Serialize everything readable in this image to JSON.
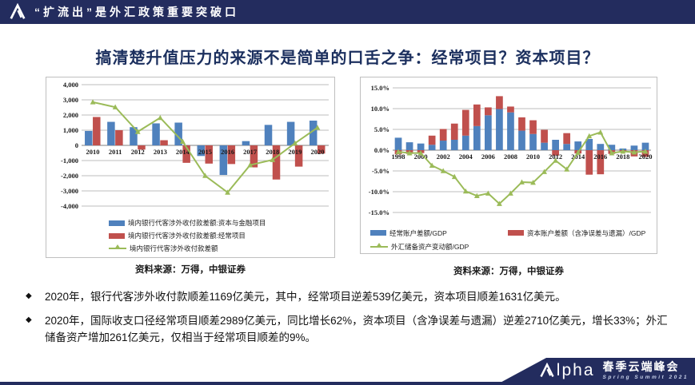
{
  "header": {
    "title": "“扩流出”是外汇政策重要突破口"
  },
  "page_title": "搞清楚升值压力的来源不是简单的口舌之争：经常项目？资本项目？",
  "colors": {
    "navy": "#232c5e",
    "title_navy": "#1b2f5e",
    "bar_blue": "#4F81BD",
    "bar_red": "#C0504D",
    "line_green": "#9BBB59"
  },
  "chart_data": [
    {
      "type": "bar",
      "subtype": "grouped-bars-with-line",
      "bar_mode": "group",
      "categories": [
        "2010",
        "2011",
        "2012",
        "2013",
        "2014",
        "2015",
        "2016",
        "2017",
        "2018",
        "2019",
        "2020"
      ],
      "series": [
        {
          "name": "境内银行代客涉外收付款差额:资本与金融项目",
          "kind": "bar",
          "color": "#4F81BD",
          "values": [
            950,
            1550,
            1200,
            1450,
            1500,
            -700,
            -1950,
            280,
            1350,
            1550,
            1631
          ]
        },
        {
          "name": "境内银行代客涉外收付款差额:经常项目",
          "kind": "bar",
          "color": "#C0504D",
          "values": [
            1870,
            1000,
            -280,
            340,
            -1150,
            -1200,
            -1230,
            -1450,
            -2250,
            -1400,
            -539
          ]
        },
        {
          "name": "境内银行代客涉外收付款差额",
          "kind": "line",
          "color": "#9BBB59",
          "values": [
            2850,
            2520,
            900,
            1820,
            250,
            -2000,
            -3100,
            -1300,
            -950,
            140,
            1169
          ]
        }
      ],
      "title": "",
      "xlabel": "",
      "ylabel": "",
      "ylim": [
        -4000,
        4000
      ],
      "ytick": 1000,
      "y_format": "thousands",
      "x_label_step": 1,
      "grid": true,
      "legend_position": "bottom"
    },
    {
      "type": "bar",
      "subtype": "stacked-bars-with-line",
      "bar_mode": "stack",
      "categories": [
        "1998",
        "1999",
        "2000",
        "2001",
        "2002",
        "2003",
        "2004",
        "2005",
        "2006",
        "2007",
        "2008",
        "2009",
        "2010",
        "2011",
        "2012",
        "2013",
        "2014",
        "2015",
        "2016",
        "2017",
        "2018",
        "2019",
        "2020"
      ],
      "series": [
        {
          "name": "经常账户差额/GDP",
          "kind": "bar",
          "color": "#4F81BD",
          "values": [
            3.0,
            1.9,
            1.6,
            1.3,
            2.3,
            2.5,
            3.5,
            5.8,
            8.4,
            9.9,
            9.1,
            4.7,
            3.9,
            1.8,
            2.5,
            1.5,
            2.1,
            2.7,
            1.5,
            1.3,
            0.4,
            1.1,
            1.8
          ]
        },
        {
          "name": "资本账户差额（含净误差与遗漏）/GDP",
          "kind": "bar",
          "color": "#C0504D",
          "values": [
            -1.0,
            -0.9,
            -0.7,
            2.2,
            2.8,
            3.9,
            6.2,
            5.2,
            1.9,
            3.1,
            1.4,
            3.2,
            3.3,
            3.1,
            -1.3,
            2.6,
            -0.8,
            -5.9,
            -5.8,
            -0.9,
            -0.2,
            -1.5,
            -1.6
          ]
        },
        {
          "name": "外汇储备资产变动额/GDP",
          "kind": "line",
          "color": "#9BBB59",
          "values": [
            -0.4,
            -0.7,
            -0.7,
            -3.7,
            -5.0,
            -6.4,
            -9.9,
            -11.0,
            -10.4,
            -12.9,
            -10.4,
            -7.7,
            -7.8,
            -5.2,
            -2.5,
            -4.6,
            -0.6,
            3.4,
            4.3,
            -0.7,
            -0.3,
            -0.5,
            -0.3
          ]
        }
      ],
      "title": "",
      "xlabel": "",
      "ylabel": "",
      "ylim": [
        -15,
        15
      ],
      "ytick": 5,
      "y_format": "percent1",
      "x_label_step": 2,
      "grid": true,
      "legend_position": "bottom"
    }
  ],
  "sources": {
    "left": "资料来源：万得，中银证券",
    "right": "资料来源：万得，中银证券"
  },
  "bullets": [
    {
      "marker": "◆",
      "text": "2020年，银行代客涉外收付款顺差1169亿美元，其中，经常项目逆差539亿美元，资本项目顺差1631亿美元。"
    },
    {
      "marker": "◆",
      "text": "2020年，国际收支口径经常项目顺差2989亿美元，同比增长62%，资本项目（含净误差与遗漏）逆差2710亿美元，增长33%；外汇储备资产增加261亿美元，仅相当于经常项目顺差的9%。"
    }
  ],
  "footer": {
    "brand_alpha_rest": "lpha",
    "brand_cn": "春季云端峰会",
    "brand_en": "Spring Summit 2021"
  }
}
